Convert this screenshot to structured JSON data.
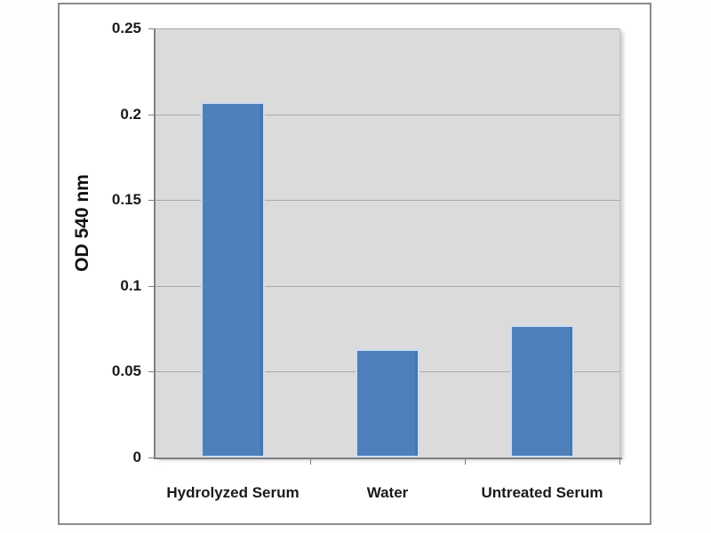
{
  "chart_data": {
    "type": "bar",
    "categories": [
      "Hydrolyzed Serum",
      "Water",
      "Untreated Serum"
    ],
    "values": [
      0.207,
      0.063,
      0.077
    ],
    "title": "",
    "xlabel": "",
    "ylabel": "OD 540 nm",
    "ylim": [
      0,
      0.25
    ],
    "ytick_labels": [
      "0",
      "0.05",
      "0.1",
      "0.15",
      "0.2",
      "0.25"
    ],
    "ytick_values": [
      0,
      0.05,
      0.1,
      0.15,
      0.2,
      0.25
    ],
    "grid": "horizontal",
    "legend": "none",
    "colors": {
      "bar_fill": "#4e81bc",
      "bar_border": "#cdddee",
      "plot_background": "#dbdbdb",
      "gridline": "#a9a9a9",
      "axis_line": "#7f7f7f",
      "frame_border": "#8c8c8c",
      "label_text": "#1a1a1a"
    }
  }
}
